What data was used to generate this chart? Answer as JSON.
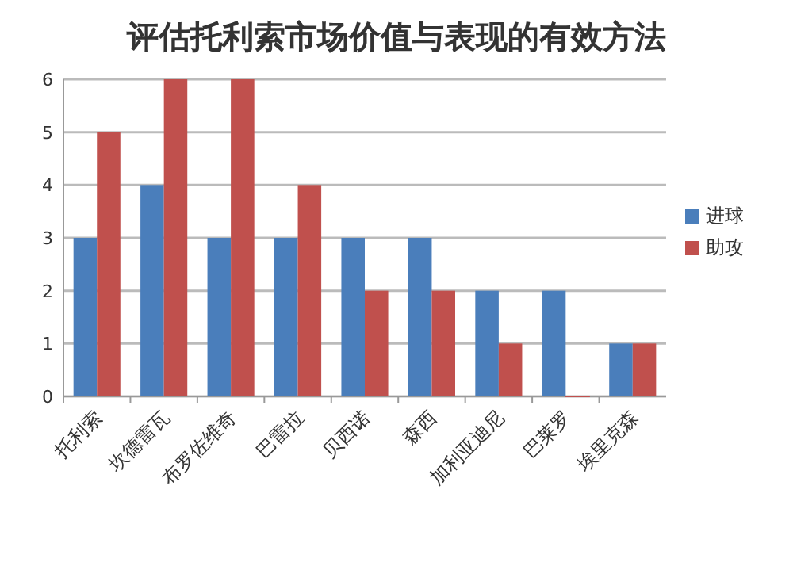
{
  "chart_data": {
    "type": "bar",
    "title": "评估托利索市场价值与表现的有效方法",
    "categories": [
      "托利索",
      "坎德雷瓦",
      "布罗佐维奇",
      "巴雷拉",
      "贝西诺",
      "森西",
      "加利亚迪尼",
      "巴莱罗",
      "埃里克森"
    ],
    "series": [
      {
        "name": "进球",
        "color": "#4a7ebb",
        "values": [
          3,
          4,
          3,
          3,
          3,
          3,
          2,
          2,
          1
        ]
      },
      {
        "name": "助攻",
        "color": "#c0504d",
        "values": [
          5,
          6,
          6,
          4,
          2,
          2,
          1,
          0,
          1
        ]
      }
    ],
    "ylim": [
      0,
      6
    ],
    "yticks": [
      0,
      1,
      2,
      3,
      4,
      5,
      6
    ],
    "grid": "y",
    "legend": "right"
  }
}
